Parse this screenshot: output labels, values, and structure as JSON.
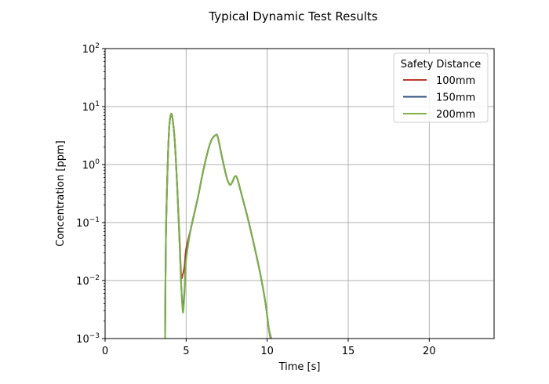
{
  "chart_data": {
    "type": "line",
    "title": "Typical Dynamic Test Results",
    "xlabel": "Time [s]",
    "ylabel": "Concentration [ppm]",
    "xlim": [
      0,
      24
    ],
    "ylim": [
      0.001,
      100
    ],
    "yscale": "log",
    "grid": true,
    "x_ticks": [
      0,
      5,
      10,
      15,
      20
    ],
    "x_tick_labels": [
      "0",
      "5",
      "10",
      "15",
      "20"
    ],
    "y_ticks": [
      0.001,
      0.01,
      0.1,
      1,
      10,
      100
    ],
    "y_tick_labels": [
      {
        "base": "10",
        "exp": "−3"
      },
      {
        "base": "10",
        "exp": "−2"
      },
      {
        "base": "10",
        "exp": "−1"
      },
      {
        "base": "10",
        "exp": "0"
      },
      {
        "base": "10",
        "exp": "1"
      },
      {
        "base": "10",
        "exp": "2"
      }
    ],
    "legend": {
      "title": "Safety Distance",
      "position": "upper right"
    },
    "series": [
      {
        "name": "100mm",
        "color": "#c0392b",
        "x": [
          3.7,
          3.75,
          3.85,
          3.95,
          4.05,
          4.15,
          4.3,
          4.45,
          4.6,
          4.7,
          4.8,
          4.9,
          5.0,
          5.3,
          5.7,
          6.1,
          6.5,
          6.8,
          6.95,
          7.2,
          7.5,
          7.7,
          7.85,
          8.0,
          8.15,
          8.4,
          8.8,
          9.2,
          9.6,
          9.9,
          10.1,
          10.25
        ],
        "y": [
          0.001,
          0.05,
          0.8,
          4.0,
          7.2,
          6.5,
          2.5,
          0.4,
          0.05,
          0.012,
          0.013,
          0.018,
          0.035,
          0.08,
          0.25,
          0.9,
          2.4,
          3.2,
          3.0,
          1.4,
          0.6,
          0.45,
          0.5,
          0.62,
          0.58,
          0.32,
          0.12,
          0.04,
          0.012,
          0.004,
          0.0015,
          0.001
        ]
      },
      {
        "name": "150mm",
        "color": "#2c4f7c",
        "x": [
          3.7,
          3.75,
          3.85,
          3.95,
          4.05,
          4.15,
          4.3,
          4.45,
          4.6,
          4.7,
          4.8,
          4.9,
          5.0,
          5.3,
          5.7,
          6.1,
          6.5,
          6.8,
          6.95,
          7.2,
          7.5,
          7.7,
          7.85,
          8.0,
          8.15,
          8.4,
          8.8,
          9.2,
          9.6,
          9.9,
          10.1,
          10.2
        ],
        "y": [
          0.001,
          0.05,
          0.8,
          4.0,
          7.2,
          6.5,
          2.5,
          0.4,
          0.04,
          0.008,
          0.0035,
          0.007,
          0.025,
          0.08,
          0.25,
          0.9,
          2.4,
          3.2,
          3.0,
          1.4,
          0.6,
          0.45,
          0.5,
          0.62,
          0.58,
          0.32,
          0.12,
          0.04,
          0.012,
          0.004,
          0.0015,
          0.001
        ]
      },
      {
        "name": "200mm",
        "color": "#7cb342",
        "x": [
          3.7,
          3.75,
          3.85,
          3.95,
          4.05,
          4.15,
          4.3,
          4.45,
          4.6,
          4.7,
          4.8,
          4.9,
          5.0,
          5.3,
          5.7,
          6.1,
          6.5,
          6.8,
          6.95,
          7.2,
          7.5,
          7.7,
          7.85,
          8.0,
          8.15,
          8.4,
          8.8,
          9.2,
          9.6,
          9.9,
          10.1,
          10.2
        ],
        "y": [
          0.001,
          0.05,
          0.8,
          4.0,
          7.2,
          6.5,
          2.5,
          0.4,
          0.04,
          0.008,
          0.0028,
          0.006,
          0.022,
          0.08,
          0.25,
          0.9,
          2.4,
          3.2,
          3.0,
          1.4,
          0.6,
          0.45,
          0.5,
          0.62,
          0.58,
          0.32,
          0.12,
          0.04,
          0.012,
          0.004,
          0.0015,
          0.001
        ]
      }
    ]
  },
  "colors": {
    "grid": "#b0b0b0",
    "axes": "#000000",
    "legend_border": "#cccccc"
  }
}
